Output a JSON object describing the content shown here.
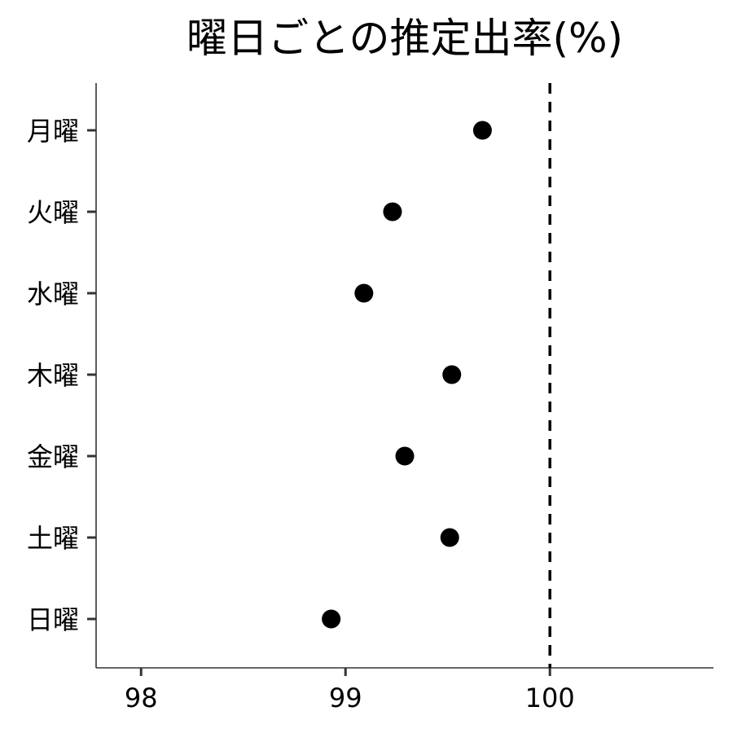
{
  "chart_data": {
    "type": "scatter",
    "title": "曜日ごとの推定出率(%)",
    "xlabel": "",
    "ylabel": "",
    "categories": [
      "月曜",
      "火曜",
      "水曜",
      "木曜",
      "金曜",
      "土曜",
      "日曜"
    ],
    "values": [
      99.67,
      99.23,
      99.09,
      99.52,
      99.29,
      99.51,
      98.93
    ],
    "xlim": [
      97.78,
      100.8
    ],
    "x_ticks": [
      "98",
      "99",
      "100"
    ],
    "reference_line": {
      "x": 100,
      "style": "dashed"
    },
    "grid": false,
    "legend": "none"
  }
}
